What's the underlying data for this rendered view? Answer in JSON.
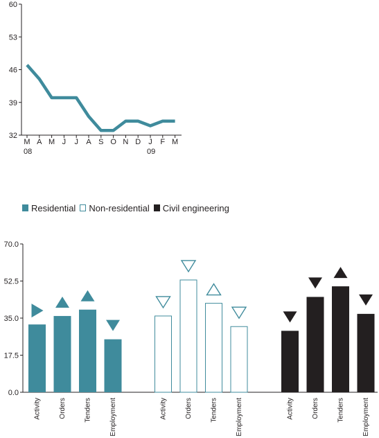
{
  "chart_data": [
    {
      "type": "line",
      "x": [
        "M",
        "A",
        "M",
        "J",
        "J",
        "A",
        "S",
        "O",
        "N",
        "D",
        "J",
        "F",
        "M"
      ],
      "year_labels": [
        {
          "at": 0,
          "label": "08"
        },
        {
          "at": 10,
          "label": "09"
        }
      ],
      "series": [
        {
          "values": [
            47,
            44,
            40,
            40,
            40,
            36,
            33,
            33,
            35,
            35,
            34,
            35,
            35
          ],
          "color": "#3f8b9c"
        }
      ],
      "ylim": [
        32,
        60
      ],
      "yticks": [
        "32",
        "39",
        "46",
        "53",
        "60"
      ],
      "title": "",
      "xlabel": "",
      "ylabel": ""
    },
    {
      "type": "bar",
      "categories": [
        "Activity",
        "Orders",
        "Tenders",
        "Employment"
      ],
      "series": [
        {
          "name": "Residential",
          "values": [
            32,
            36,
            39,
            25
          ],
          "trends": [
            "right",
            "up",
            "up",
            "down"
          ],
          "color": "#3f8b9c",
          "style": "filled"
        },
        {
          "name": "Non-residential",
          "values": [
            36,
            53,
            42,
            31
          ],
          "trends": [
            "down",
            "down",
            "up",
            "down"
          ],
          "color": "#3f8b9c",
          "style": "outline"
        },
        {
          "name": "Civil engineering",
          "values": [
            29,
            45,
            50,
            37
          ],
          "trends": [
            "down",
            "down",
            "up",
            "down"
          ],
          "color": "#231f20",
          "style": "filled"
        }
      ],
      "ylim": [
        0,
        70
      ],
      "yticks": [
        "0.0",
        "17.5",
        "35.0",
        "52.5",
        "70.0"
      ],
      "title": "",
      "xlabel": "",
      "ylabel": ""
    }
  ]
}
